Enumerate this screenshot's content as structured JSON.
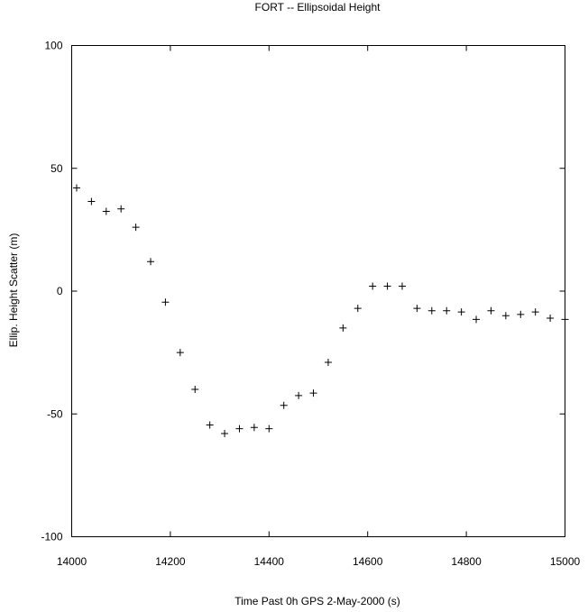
{
  "chart_data": {
    "type": "scatter",
    "title": "FORT -- Ellipsoidal Height",
    "xlabel": "Time Past 0h GPS 2-May-2000  (s)",
    "ylabel": "Ellip. Height Scatter  (m)",
    "xlim": [
      14000,
      15000
    ],
    "ylim": [
      -100,
      100
    ],
    "xticks": [
      14000,
      14200,
      14400,
      14600,
      14800,
      15000
    ],
    "yticks": [
      -100,
      -50,
      0,
      50,
      100
    ],
    "xtick_labels": [
      "14000",
      "14200",
      "14400",
      "14600",
      "14800",
      "15000"
    ],
    "ytick_labels": [
      "-100",
      "-50",
      "0",
      "50",
      "100"
    ],
    "grid": false,
    "marker": "+",
    "series": [
      {
        "x": [
          14010,
          14040,
          14070,
          14100,
          14130,
          14160,
          14190,
          14220,
          14250,
          14280,
          14310,
          14340,
          14370,
          14400,
          14430,
          14460,
          14490,
          14520,
          14550,
          14580,
          14610,
          14640,
          14670,
          14700,
          14730,
          14760,
          14790,
          14820,
          14850,
          14880,
          14910,
          14940,
          14970,
          15000
        ],
        "y": [
          42,
          36.5,
          32.5,
          33.5,
          26,
          12,
          -4.5,
          -25,
          -40,
          -54.5,
          -58,
          -56,
          -55.5,
          -56,
          -46.5,
          -42.5,
          -41.5,
          -29,
          -15,
          -7,
          2,
          2,
          2,
          -7,
          -8,
          -8,
          -8.5,
          -11.5,
          -8,
          -10,
          -9.5,
          -8.5,
          -11,
          -11.5
        ]
      }
    ]
  }
}
